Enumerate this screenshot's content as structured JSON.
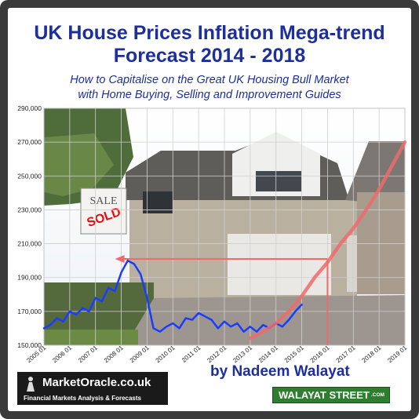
{
  "header": {
    "title_line1": "UK House Prices Inflation Mega-trend",
    "title_line2": "Forecast  2014 - 2018",
    "subtitle_line1": "How to Capitalise on the Great UK Housing Bull Market",
    "subtitle_line2": "with Home Buying, Selling and Improvement Guides"
  },
  "footer": {
    "byline": "by Nadeem Walayat",
    "logo_text": "MarketOracle.co.uk",
    "logo_tagline": "Financial Markets Analysis & Forecasts",
    "badge_text": "WALAYAT STREET",
    "badge_suffix": ".COM"
  },
  "photo": {
    "sign_text": "SALE",
    "sold_text": "SOLD"
  },
  "colors": {
    "title": "#1c2f9c",
    "actual_series": "#1a3cff",
    "forecast_series": "#ef6b6b",
    "grid": "#cfcfcf"
  },
  "chart_data": {
    "type": "line",
    "title": "UK House Prices Inflation Mega-trend Forecast  2014 - 2018",
    "ylim": [
      150000,
      290000
    ],
    "xlim": [
      "2005-01",
      "2019-01"
    ],
    "grid": true,
    "yticks": [
      "150,000",
      "170,000",
      "190,000",
      "210,000",
      "230,000",
      "250,000",
      "270,000",
      "290,000"
    ],
    "xticks": [
      "2005 01",
      "2006 01",
      "2007 01",
      "2008 01",
      "2009 01",
      "2010 01",
      "2011 01",
      "2012 01",
      "2013 01",
      "2014 01",
      "2015 01",
      "2016 01",
      "2017 01",
      "2018 01",
      "2019 01"
    ],
    "series": [
      {
        "x": [
          "2005-01",
          "2005-04",
          "2005-07",
          "2005-10",
          "2006-01",
          "2006-04",
          "2006-07",
          "2006-10",
          "2007-01",
          "2007-04",
          "2007-07",
          "2007-10",
          "2008-01",
          "2008-04",
          "2008-07",
          "2008-10",
          "2009-01",
          "2009-04",
          "2009-07",
          "2009-10",
          "2010-01",
          "2010-04",
          "2010-07",
          "2010-10",
          "2011-01",
          "2011-04",
          "2011-07",
          "2011-10",
          "2012-01",
          "2012-04",
          "2012-07",
          "2012-10",
          "2013-01",
          "2013-04",
          "2013-07",
          "2013-10",
          "2014-01",
          "2014-04",
          "2014-07",
          "2014-10",
          "2015-01"
        ],
        "values": [
          160000,
          162000,
          166000,
          164000,
          170000,
          168000,
          172000,
          170000,
          178000,
          176000,
          184000,
          182000,
          193000,
          200000,
          198000,
          192000,
          178000,
          160000,
          158000,
          161000,
          163000,
          160000,
          166000,
          165000,
          169000,
          167000,
          165000,
          160000,
          164000,
          161000,
          163000,
          158000,
          161000,
          158000,
          162000,
          160000,
          163000,
          161000,
          165000,
          170000,
          174000
        ]
      },
      {
        "x": [
          "2013-01",
          "2013-07",
          "2014-01",
          "2014-07",
          "2015-01",
          "2015-07",
          "2016-01",
          "2016-07",
          "2017-01",
          "2017-07",
          "2018-01",
          "2018-07",
          "2019-01"
        ],
        "values": [
          154000,
          158000,
          163000,
          170000,
          179000,
          190000,
          199000,
          210000,
          219000,
          230000,
          242000,
          256000,
          270000
        ]
      }
    ],
    "annotations": [
      {
        "type": "hline",
        "y": 201000,
        "x_start": "2008-01",
        "x_end": "2016-01"
      },
      {
        "type": "vline",
        "x": "2016-01",
        "y_start": 150000,
        "y_end": 201000
      }
    ]
  }
}
